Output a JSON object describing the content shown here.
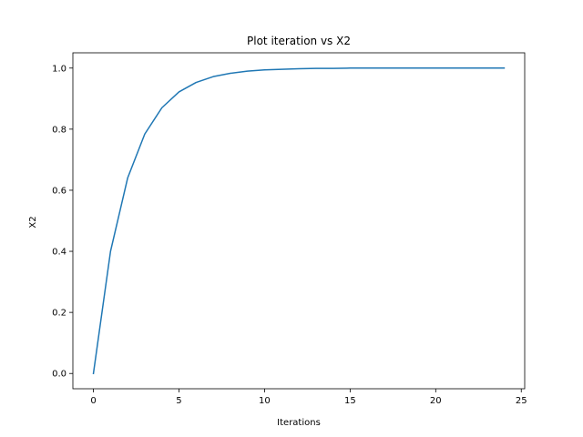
{
  "chart_data": {
    "type": "line",
    "title": "Plot iteration vs X2",
    "xlabel": "Iterations",
    "ylabel": "X2",
    "xlim": [
      -1.2,
      25.2
    ],
    "ylim": [
      -0.05,
      1.05
    ],
    "xticks": [
      0,
      5,
      10,
      15,
      20,
      25
    ],
    "yticks": [
      0.0,
      0.2,
      0.4,
      0.6,
      0.8,
      1.0
    ],
    "xtick_labels": [
      "0",
      "5",
      "10",
      "15",
      "20",
      "25"
    ],
    "ytick_labels": [
      "0.0",
      "0.2",
      "0.4",
      "0.6",
      "0.8",
      "1.0"
    ],
    "grid": false,
    "series": [
      {
        "color": "#1f77b4",
        "x": [
          0,
          1,
          2,
          3,
          4,
          5,
          6,
          7,
          8,
          9,
          10,
          11,
          12,
          13,
          14,
          15,
          16,
          17,
          18,
          19,
          20,
          21,
          22,
          23,
          24
        ],
        "y": [
          0.0,
          0.4,
          0.64,
          0.784,
          0.87,
          0.922,
          0.953,
          0.972,
          0.983,
          0.99,
          0.994,
          0.996,
          0.998,
          0.999,
          0.999,
          1.0,
          1.0,
          1.0,
          1.0,
          1.0,
          1.0,
          1.0,
          1.0,
          1.0,
          1.0
        ]
      }
    ]
  }
}
